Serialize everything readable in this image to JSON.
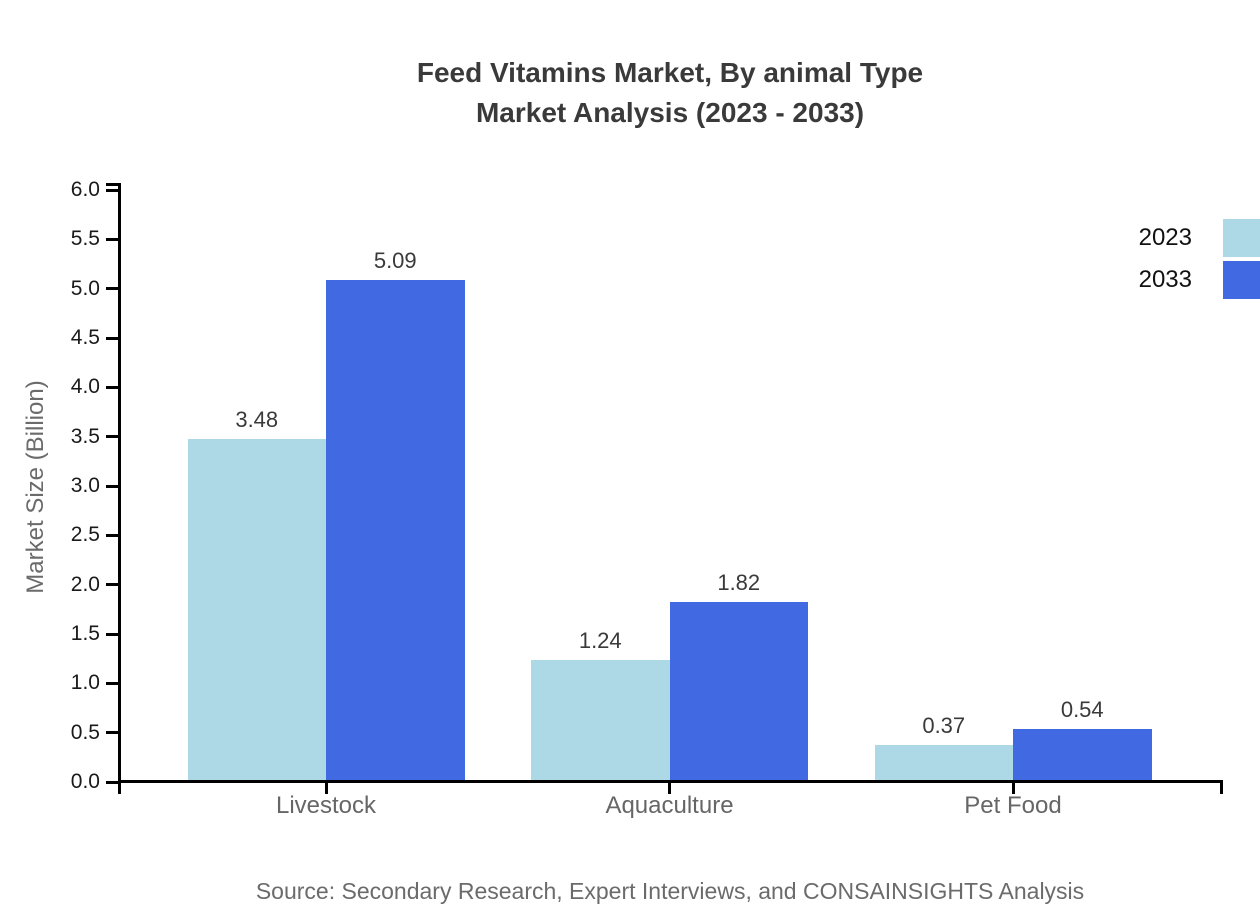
{
  "header": {
    "title": "Feed Vitamins Market, By animal Type",
    "subtitle": "Market Analysis (2023 - 2033)"
  },
  "footer": {
    "source": "Source: Secondary Research, Expert Interviews, and CONSAINSIGHTS Analysis"
  },
  "colors": {
    "series_2023": "#ADD8E6",
    "series_2033": "#4169E1",
    "axis": "#000000",
    "title_text": "#3a3a3a",
    "value_label_text": "#3a3a3a",
    "category_text": "#666666",
    "axis_tick_text": "#1a1a1a",
    "muted_text": "#6b6b6b",
    "background": "#ffffff"
  },
  "chart_data": {
    "type": "bar",
    "title": "Feed Vitamins Market, By animal Type",
    "subtitle": "Market Analysis (2023 - 2033)",
    "categories": [
      "Livestock",
      "Aquaculture",
      "Pet Food"
    ],
    "series": [
      {
        "name": "2023",
        "color": "#ADD8E6",
        "values": [
          3.48,
          1.24,
          0.37
        ],
        "labels": [
          "3.48",
          "1.24",
          "0.37"
        ]
      },
      {
        "name": "2033",
        "color": "#4169E1",
        "values": [
          5.09,
          1.82,
          0.54
        ],
        "labels": [
          "5.09",
          "1.82",
          "0.54"
        ]
      }
    ],
    "xlabel": "",
    "ylabel": "Market Size (Billion)",
    "ylim": [
      0.0,
      6.0
    ],
    "ytick_step": 0.5,
    "ytick_labels": [
      "0.0",
      "0.5",
      "1.0",
      "1.5",
      "2.0",
      "2.5",
      "3.0",
      "3.5",
      "4.0",
      "4.5",
      "5.0",
      "5.5",
      "6.0"
    ],
    "grid": false,
    "legend_position": "right-outside",
    "value_labels_shown": true,
    "source": "Source: Secondary Research, Expert Interviews, and CONSAINSIGHTS Analysis"
  }
}
